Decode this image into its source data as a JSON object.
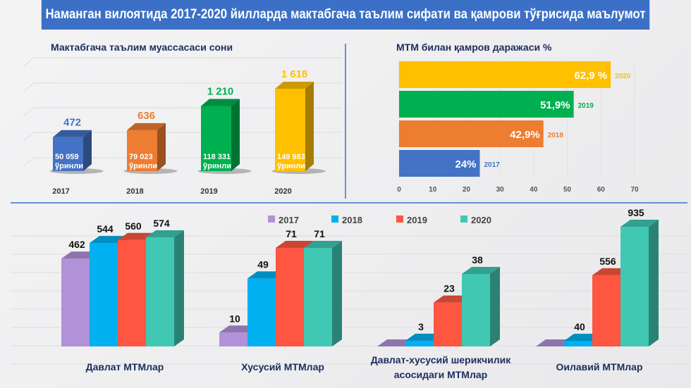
{
  "title": "Наманган вилоятида 2017-2020 йилларда мактабгача таълим сифати ва қамрови тўғрисида маълумот",
  "colors": {
    "title_bar": "#3b70c6",
    "heading": "#1c2d5e",
    "y2017": "#4472c4",
    "y2018": "#ed7d31",
    "y2019": "#00b050",
    "y2020": "#ffc000",
    "b2017": "#b191d8",
    "b2018": "#00b0f0",
    "b2019": "#fe5640",
    "b2020": "#40c8b4"
  },
  "chart_data": [
    {
      "type": "bar",
      "title": "Мактабгача таълим муассасаси сони",
      "categories": [
        "2017",
        "2018",
        "2019",
        "2020"
      ],
      "values": [
        472,
        636,
        1210,
        1618
      ],
      "value_labels": [
        "472",
        "636",
        "1 210",
        "1 618"
      ],
      "inner_labels": [
        [
          "50 059",
          "ўринли"
        ],
        [
          "79 023",
          "ўринли"
        ],
        [
          "118 331",
          "ўринли"
        ],
        [
          "149 983",
          "ўринли"
        ]
      ]
    },
    {
      "type": "bar",
      "orientation": "horizontal",
      "title": "МТМ билан қамров даражаси %",
      "categories": [
        "2020",
        "2019",
        "2018",
        "2017"
      ],
      "values": [
        62.9,
        51.9,
        42.9,
        24
      ],
      "value_labels": [
        "62,9 %",
        "51,9%",
        "42,9%",
        "24%"
      ],
      "xlim": [
        0,
        70
      ],
      "xticks": [
        "0",
        "10",
        "20",
        "30",
        "40",
        "50",
        "60",
        "70"
      ]
    },
    {
      "type": "bar",
      "legend": [
        "2017",
        "2018",
        "2019",
        "2020"
      ],
      "legend_position": "top",
      "categories": [
        "Давлат МТМлар",
        "Хусусий МТМлар",
        "Давлат-хусусий шерикчилик асосидаги МТМлар",
        "Оилавий МТМлар"
      ],
      "category_lines": [
        [
          "Давлат МТМлар"
        ],
        [
          "Хусусий МТМлар"
        ],
        [
          "Давлат-хусусий шерикчилик",
          "асосидаги МТМлар"
        ],
        [
          "Оилавий МТМлар"
        ]
      ],
      "series": [
        {
          "name": "2017",
          "values": [
            462,
            10,
            0,
            0
          ],
          "labels": [
            "462",
            "10",
            "",
            ""
          ]
        },
        {
          "name": "2018",
          "values": [
            544,
            49,
            3,
            40
          ],
          "labels": [
            "544",
            "49",
            "3",
            "40"
          ]
        },
        {
          "name": "2019",
          "values": [
            560,
            71,
            23,
            556
          ],
          "labels": [
            "560",
            "71",
            "23",
            "556"
          ]
        },
        {
          "name": "2020",
          "values": [
            574,
            71,
            38,
            935
          ],
          "labels": [
            "574",
            "71",
            "38",
            "935"
          ]
        }
      ]
    }
  ]
}
